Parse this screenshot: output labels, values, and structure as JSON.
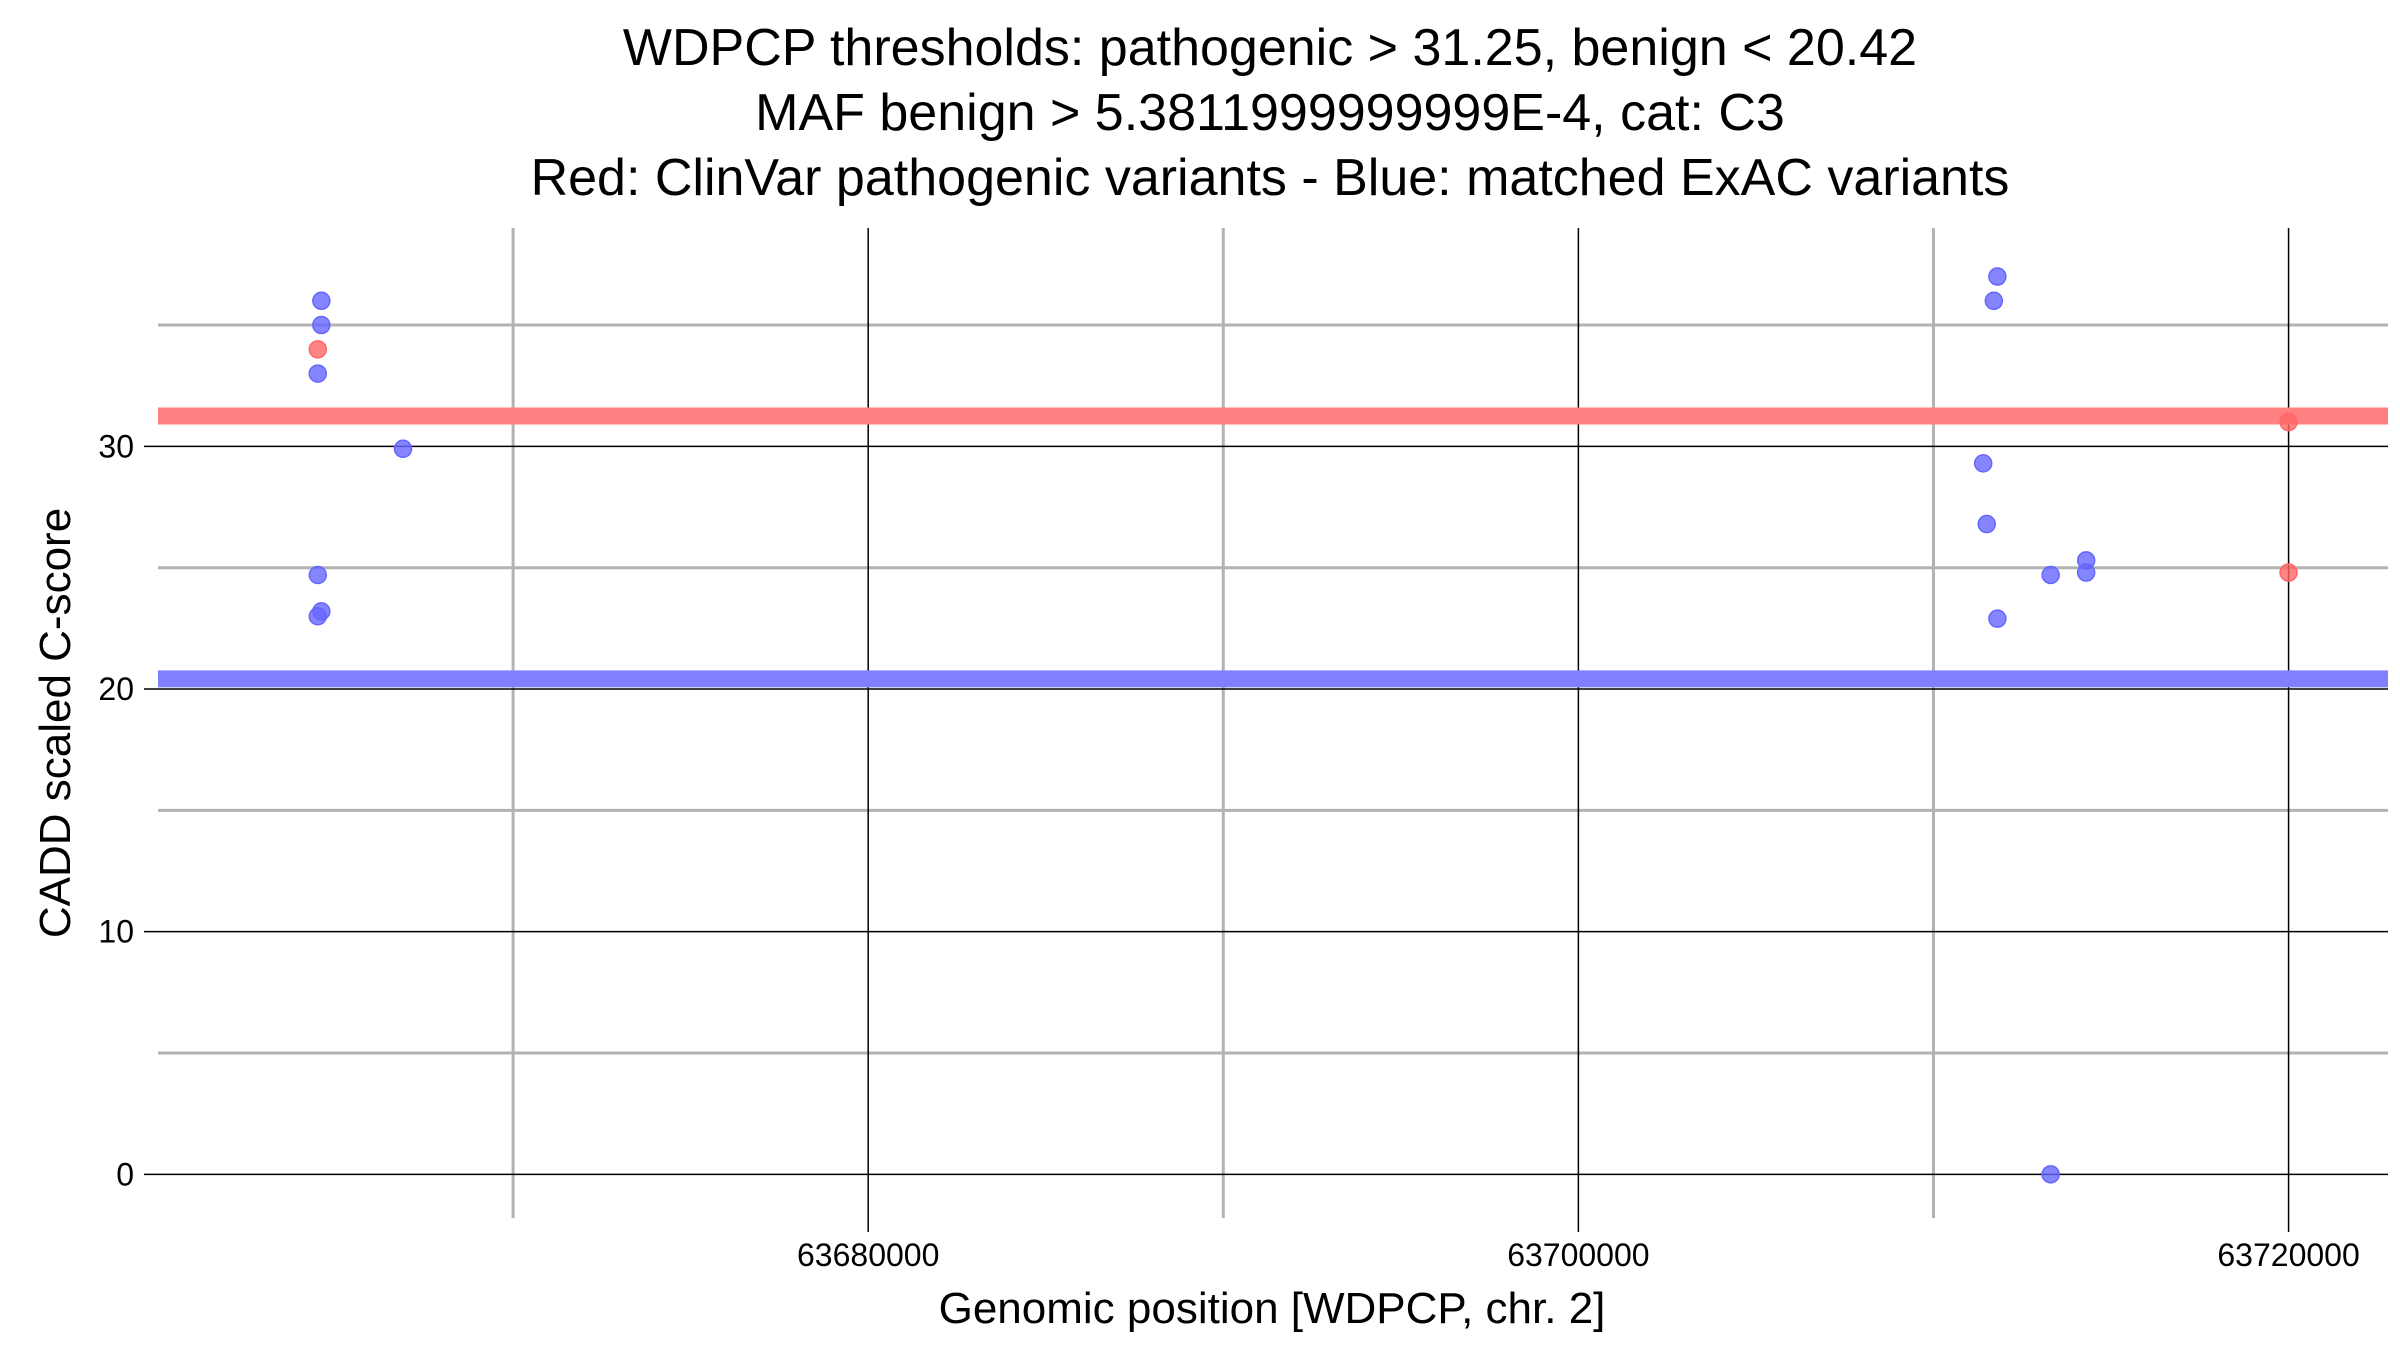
{
  "chart_data": {
    "type": "scatter",
    "title_lines": [
      "WDPCP thresholds: pathogenic > 31.25, benign < 20.42",
      "MAF benign > 5.3811999999999E-4, cat: C3",
      "Red: ClinVar pathogenic variants - Blue: matched ExAC variants"
    ],
    "xlabel": "Genomic position [WDPCP, chr. 2]",
    "ylabel": "CADD scaled C-score",
    "x_ticks": [
      63680000,
      63700000,
      63720000
    ],
    "x_tick_labels": [
      "63680000",
      "63700000",
      "63720000"
    ],
    "y_ticks": [
      0,
      10,
      20,
      30
    ],
    "y_tick_labels": [
      "0",
      "10",
      "20",
      "30"
    ],
    "x_minor_gridlines": [
      63670000,
      63690000,
      63710000
    ],
    "y_minor_gridlines": [
      5,
      15,
      25,
      35
    ],
    "xlim": [
      63660000,
      63722800
    ],
    "ylim": [
      -1.8,
      39
    ],
    "grid": true,
    "thresholds": [
      {
        "value": 31.25,
        "color": "#ff8080"
      },
      {
        "value": 20.42,
        "color": "#8080ff"
      }
    ],
    "series": [
      {
        "color": "#ff6666",
        "points": [
          {
            "x": 63664500,
            "y": 34.0
          },
          {
            "x": 63720000,
            "y": 31.0
          },
          {
            "x": 63720000,
            "y": 24.8
          }
        ]
      },
      {
        "color": "#6666ff",
        "points": [
          {
            "x": 63664600,
            "y": 36.0
          },
          {
            "x": 63664600,
            "y": 35.0
          },
          {
            "x": 63664500,
            "y": 33.0
          },
          {
            "x": 63666900,
            "y": 29.9
          },
          {
            "x": 63664500,
            "y": 24.7
          },
          {
            "x": 63664600,
            "y": 23.2
          },
          {
            "x": 63664500,
            "y": 23.0
          },
          {
            "x": 63711800,
            "y": 37.0
          },
          {
            "x": 63711700,
            "y": 36.0
          },
          {
            "x": 63711400,
            "y": 29.3
          },
          {
            "x": 63711500,
            "y": 26.8
          },
          {
            "x": 63711800,
            "y": 22.9
          },
          {
            "x": 63713300,
            "y": 24.7
          },
          {
            "x": 63714300,
            "y": 25.3
          },
          {
            "x": 63714300,
            "y": 24.8
          },
          {
            "x": 63713300,
            "y": 0.0
          }
        ]
      }
    ]
  }
}
